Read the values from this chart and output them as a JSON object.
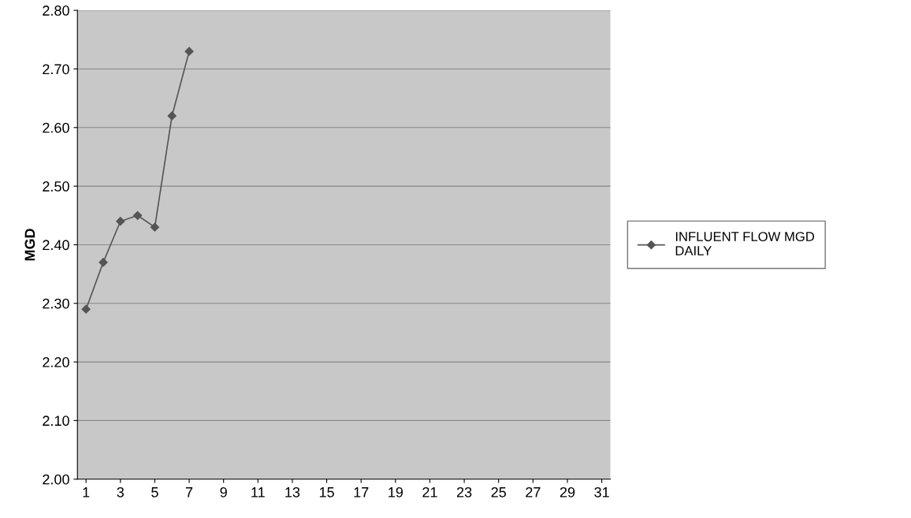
{
  "chart_data": {
    "type": "line",
    "ylabel": "MGD",
    "x": [
      1,
      2,
      3,
      4,
      5,
      6,
      7
    ],
    "series": [
      {
        "name": "INFLUENT FLOW MGD\nDAILY",
        "color": "#555555",
        "values": [
          2.29,
          2.37,
          2.44,
          2.45,
          2.43,
          2.62,
          2.73
        ]
      }
    ],
    "xlim": [
      0.5,
      31.5
    ],
    "xticks": [
      1,
      3,
      5,
      7,
      9,
      11,
      13,
      15,
      17,
      19,
      21,
      23,
      25,
      27,
      29,
      31
    ],
    "ylim": [
      2.0,
      2.8
    ],
    "yticks": [
      {
        "value": 2.0,
        "label": "2.00"
      },
      {
        "value": 2.1,
        "label": "2.10"
      },
      {
        "value": 2.2,
        "label": "2.20"
      },
      {
        "value": 2.3,
        "label": "2.30"
      },
      {
        "value": 2.4,
        "label": "2.40"
      },
      {
        "value": 2.5,
        "label": "2.50"
      },
      {
        "value": 2.6,
        "label": "2.60"
      },
      {
        "value": 2.7,
        "label": "2.70"
      },
      {
        "value": 2.8,
        "label": "2.80"
      }
    ],
    "grid": "y",
    "legend": "right",
    "marker": "diamond",
    "line_style": "solid"
  }
}
